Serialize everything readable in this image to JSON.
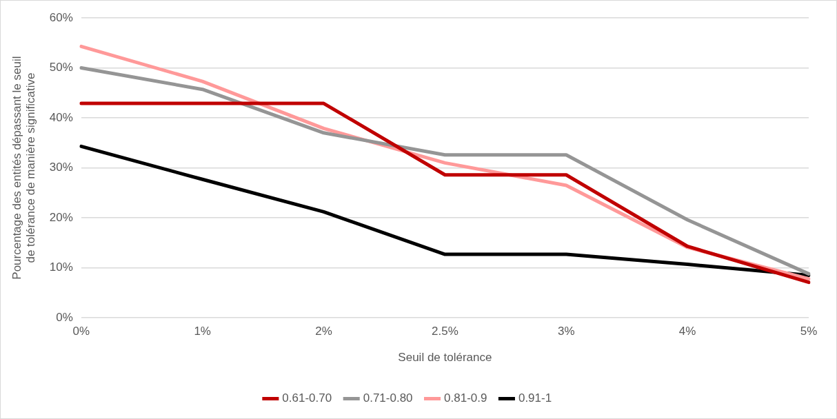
{
  "chart_data": {
    "type": "line",
    "xlabel": "Seuil de tolérance",
    "ylabel": "Pourcentage des entités dépassant le seuil de tolérance de manière significative",
    "categories": [
      "0%",
      "1%",
      "2%",
      "2.5%",
      "3%",
      "4%",
      "5%"
    ],
    "series": [
      {
        "name": "0.61-0.70",
        "color": "#c00000",
        "values": [
          42.9,
          42.9,
          42.9,
          28.6,
          28.6,
          14.3,
          7.1
        ]
      },
      {
        "name": "0.71-0.80",
        "color": "#959595",
        "values": [
          50,
          45.7,
          37,
          32.6,
          32.6,
          19.6,
          8.8
        ]
      },
      {
        "name": "0.81-0.9",
        "color": "#ff9999",
        "values": [
          54.3,
          47.3,
          37.9,
          31,
          26.5,
          14.1,
          7.8
        ]
      },
      {
        "name": "0.91-1",
        "color": "#000000",
        "values": [
          34.3,
          27.7,
          21.2,
          12.7,
          12.7,
          10.7,
          8.5
        ]
      }
    ],
    "ylim": [
      0,
      60
    ],
    "yticks": [
      {
        "value": 0,
        "label": "0%"
      },
      {
        "value": 10,
        "label": "10%"
      },
      {
        "value": 20,
        "label": "20%"
      },
      {
        "value": 30,
        "label": "30%"
      },
      {
        "value": 40,
        "label": "40%"
      },
      {
        "value": 50,
        "label": "50%"
      },
      {
        "value": 60,
        "label": "60%"
      }
    ],
    "grid": "y",
    "legend": "bottom",
    "marker": "none",
    "line_style": "solid"
  }
}
